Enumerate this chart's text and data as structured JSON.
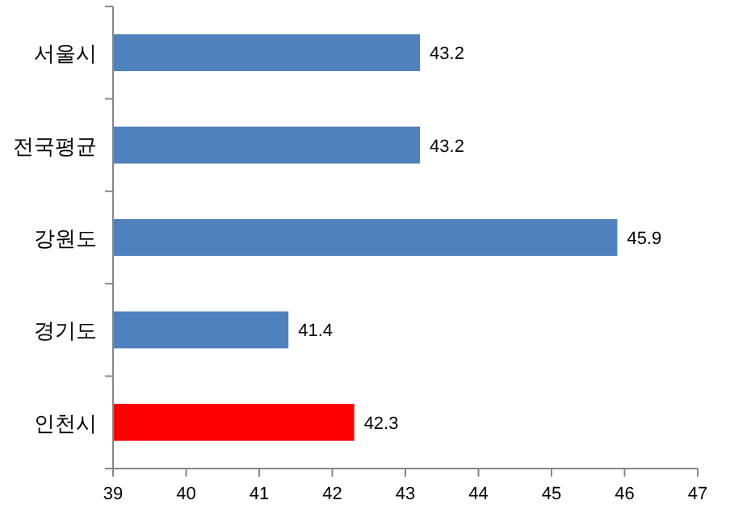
{
  "chart_data": {
    "type": "bar",
    "orientation": "horizontal",
    "categories": [
      "서울시",
      "전국평균",
      "강원도",
      "경기도",
      "인천시"
    ],
    "values": [
      43.2,
      43.2,
      45.9,
      41.4,
      42.3
    ],
    "colors": [
      "#4f81bd",
      "#4f81bd",
      "#4f81bd",
      "#4f81bd",
      "#ff0000"
    ],
    "xlim": [
      39,
      47
    ],
    "xticks": [
      39,
      40,
      41,
      42,
      43,
      44,
      45,
      46,
      47
    ],
    "data_labels": true
  }
}
